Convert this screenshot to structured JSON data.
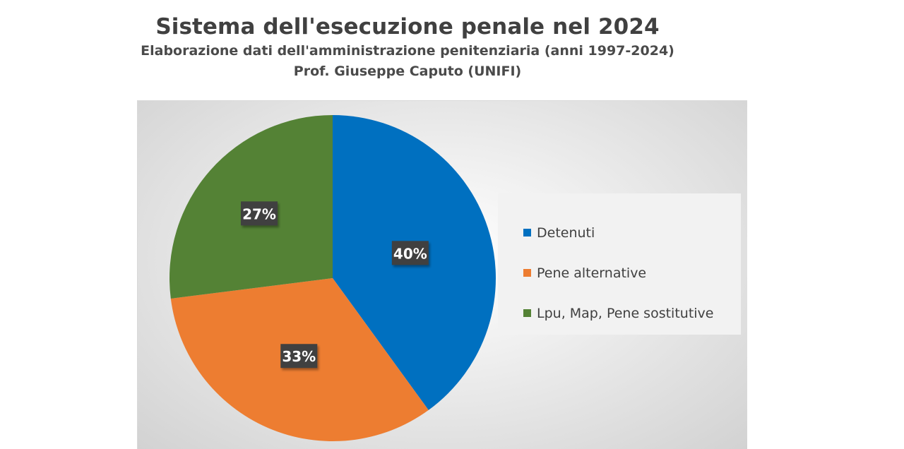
{
  "chart_data": {
    "type": "pie",
    "title": "Sistema dell'esecuzione penale nel 2024",
    "subtitle_lines": [
      "Elaborazione dati dell'amministrazione penitenziaria (anni 1997-2024)",
      "Prof. Giuseppe Caputo (UNIFI)"
    ],
    "categories": [
      "Detenuti",
      "Pene alternative",
      "Lpu, Map, Pene sostitutive"
    ],
    "values": [
      40,
      33,
      27
    ],
    "data_labels": [
      "40%",
      "33%",
      "27%"
    ],
    "colors": [
      "#0070c0",
      "#ed7d31",
      "#548235"
    ],
    "legend_position": "right",
    "start_angle": "12 o'clock, clockwise"
  }
}
